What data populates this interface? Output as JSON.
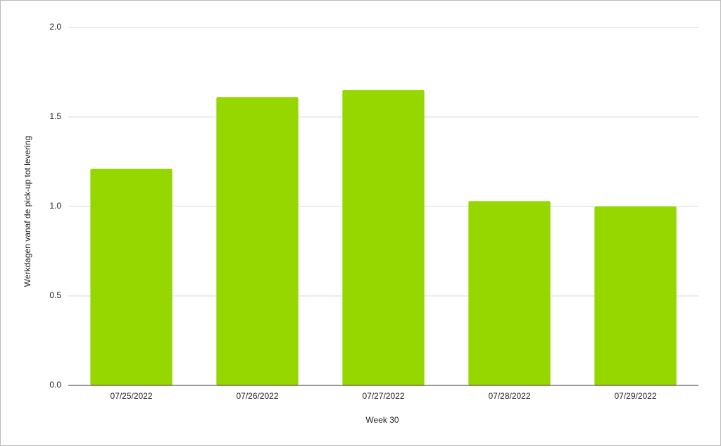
{
  "chart_data": {
    "type": "bar",
    "x_label": "Week 30",
    "y_label": "Werkdagen vanaf de pick-up tot levering",
    "categories": [
      "07/25/2022",
      "07/26/2022",
      "07/27/2022",
      "07/28/2022",
      "07/29/2022"
    ],
    "values": [
      1.21,
      1.61,
      1.65,
      1.03,
      1.0
    ],
    "color": "#97d700",
    "ylim": [
      0,
      2
    ],
    "yticks": [
      {
        "value": 0,
        "label": "0.0"
      },
      0.5,
      {
        "value": 1,
        "label": "1.0"
      },
      1.5,
      {
        "value": 2,
        "label": "2.0"
      }
    ],
    "grid": true
  }
}
